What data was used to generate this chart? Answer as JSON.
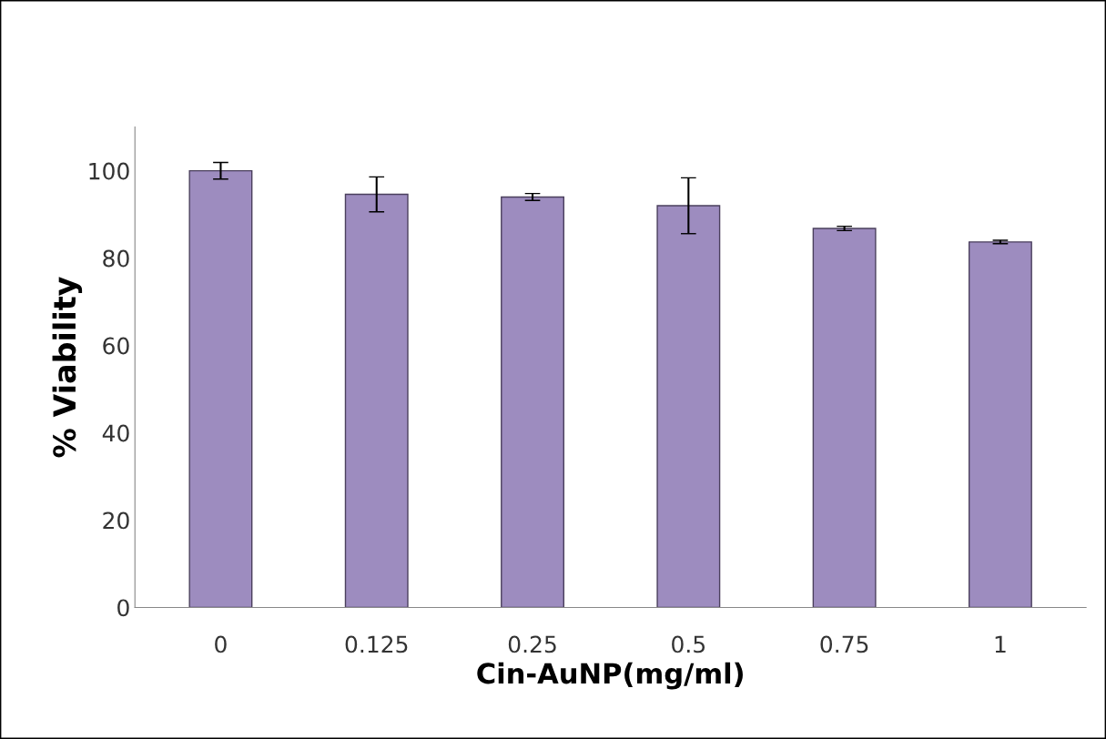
{
  "chart_data": {
    "type": "bar",
    "xlabel": "Cin-AuNP(mg/ml)",
    "ylabel": "% Viability",
    "categories": [
      "0",
      "0.125",
      "0.25",
      "0.5",
      "0.75",
      "1"
    ],
    "values": [
      100,
      94.6,
      94.0,
      92.0,
      86.8,
      83.7
    ],
    "errors": [
      1.9,
      4.0,
      0.8,
      6.4,
      0.5,
      0.4
    ],
    "color": "#9d8cbf",
    "ylim": [
      0,
      110
    ],
    "yticks": [
      0,
      20,
      40,
      60,
      80,
      100
    ],
    "grid": false
  }
}
